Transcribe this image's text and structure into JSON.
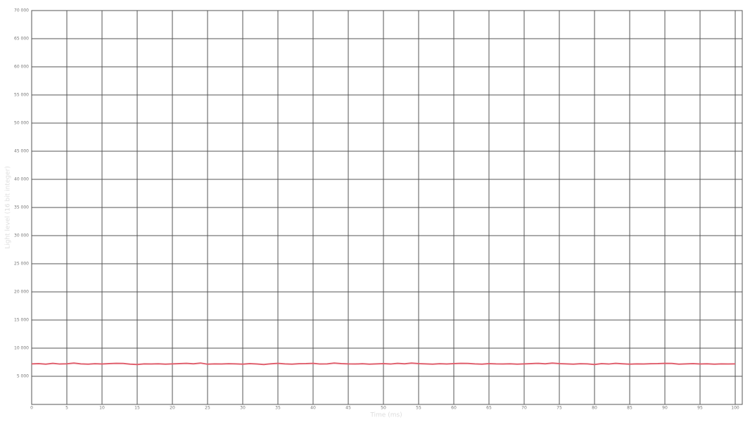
{
  "chart_data": {
    "type": "line",
    "x_label": "Time (ms)",
    "y_label": "Light level (16 bit integer)",
    "x": [
      0,
      1,
      2,
      3,
      4,
      5,
      6,
      7,
      8,
      9,
      10,
      11,
      12,
      13,
      14,
      15,
      16,
      17,
      18,
      19,
      20,
      21,
      22,
      23,
      24,
      25,
      26,
      27,
      28,
      29,
      30,
      31,
      32,
      33,
      34,
      35,
      36,
      37,
      38,
      39,
      40,
      41,
      42,
      43,
      44,
      45,
      46,
      47,
      48,
      49,
      50,
      51,
      52,
      53,
      54,
      55,
      56,
      57,
      58,
      59,
      60,
      61,
      62,
      63,
      64,
      65,
      66,
      67,
      68,
      69,
      70,
      71,
      72,
      73,
      74,
      75,
      76,
      77,
      78,
      79,
      80,
      81,
      82,
      83,
      84,
      85,
      86,
      87,
      88,
      89,
      90,
      91,
      92,
      93,
      94,
      95,
      96,
      97,
      98,
      99,
      100
    ],
    "series": [
      {
        "color": "#e0606e",
        "values": [
          7200,
          7250,
          7150,
          7300,
          7180,
          7220,
          7350,
          7200,
          7150,
          7230,
          7180,
          7250,
          7300,
          7280,
          7150,
          7100,
          7200,
          7180,
          7220,
          7150,
          7200,
          7250,
          7300,
          7220,
          7350,
          7150,
          7200,
          7180,
          7230,
          7200,
          7150,
          7250,
          7180,
          7100,
          7220,
          7300,
          7200,
          7150,
          7230,
          7250,
          7300,
          7180,
          7200,
          7350,
          7250,
          7200,
          7180,
          7230,
          7150,
          7200,
          7250,
          7180,
          7300,
          7220,
          7350,
          7250,
          7200,
          7150,
          7230,
          7180,
          7250,
          7300,
          7280,
          7200,
          7150,
          7250,
          7200,
          7180,
          7220,
          7150,
          7200,
          7250,
          7300,
          7220,
          7350,
          7250,
          7200,
          7150,
          7230,
          7200,
          7100,
          7250,
          7180,
          7300,
          7220,
          7150,
          7200,
          7180,
          7230,
          7250,
          7300,
          7280,
          7150,
          7200,
          7250,
          7180,
          7220,
          7150,
          7200,
          7180,
          7200
        ]
      }
    ],
    "xlim": [
      0,
      101
    ],
    "ylim": [
      0,
      70000
    ],
    "xticks": [
      0,
      5,
      10,
      15,
      20,
      25,
      30,
      35,
      40,
      45,
      50,
      55,
      60,
      65,
      70,
      75,
      80,
      85,
      90,
      95,
      100
    ],
    "yticks": [
      {
        "value": 5000,
        "label": "5 000"
      },
      {
        "value": 10000,
        "label": "10 000"
      },
      {
        "value": 15000,
        "label": "15 000"
      },
      {
        "value": 20000,
        "label": "20 000"
      },
      {
        "value": 25000,
        "label": "25 000"
      },
      {
        "value": 30000,
        "label": "30 000"
      },
      {
        "value": 35000,
        "label": "35 000"
      },
      {
        "value": 40000,
        "label": "40 000"
      },
      {
        "value": 45000,
        "label": "45 000"
      },
      {
        "value": 50000,
        "label": "50 000"
      },
      {
        "value": 55000,
        "label": "55 000"
      },
      {
        "value": 60000,
        "label": "60 000"
      },
      {
        "value": 65000,
        "label": "65 000"
      },
      {
        "value": 70000,
        "label": "70 000"
      }
    ],
    "grid": true
  }
}
